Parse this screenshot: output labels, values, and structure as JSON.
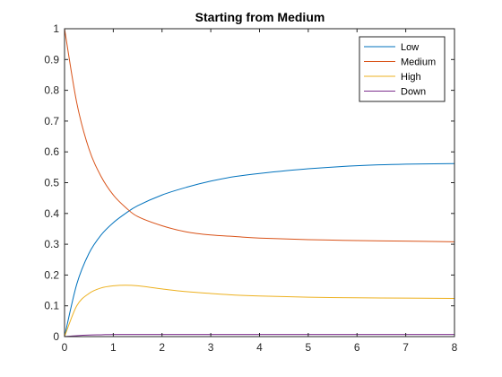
{
  "chart_data": {
    "type": "line",
    "title": "Starting from Medium",
    "xlabel": "",
    "ylabel": "",
    "xlim": [
      0,
      8
    ],
    "ylim": [
      0,
      1
    ],
    "xticks": [
      0,
      1,
      2,
      3,
      4,
      5,
      6,
      7,
      8
    ],
    "yticks": [
      0,
      0.1,
      0.2,
      0.3,
      0.4,
      0.5,
      0.6,
      0.7,
      0.8,
      0.9,
      1
    ],
    "ytick_labels": [
      "0",
      "0.1",
      "0.2",
      "0.3",
      "0.4",
      "0.5",
      "0.6",
      "0.7",
      "0.8",
      "0.9",
      "1"
    ],
    "grid": false,
    "legend_position": "top-right",
    "x": [
      0,
      0.25,
      0.5,
      0.75,
      1,
      1.25,
      1.5,
      2,
      2.5,
      3,
      3.5,
      4,
      5,
      6,
      7,
      8
    ],
    "series": [
      {
        "name": "Low",
        "color": "#0072BD",
        "values": [
          0,
          0.17,
          0.27,
          0.33,
          0.37,
          0.4,
          0.425,
          0.46,
          0.485,
          0.505,
          0.52,
          0.53,
          0.545,
          0.555,
          0.56,
          0.562
        ]
      },
      {
        "name": "Medium",
        "color": "#D95319",
        "values": [
          1,
          0.76,
          0.61,
          0.52,
          0.46,
          0.42,
          0.39,
          0.36,
          0.34,
          0.33,
          0.325,
          0.32,
          0.315,
          0.312,
          0.31,
          0.308
        ]
      },
      {
        "name": "High",
        "color": "#EDB120",
        "values": [
          0,
          0.1,
          0.14,
          0.158,
          0.165,
          0.167,
          0.165,
          0.155,
          0.146,
          0.14,
          0.135,
          0.132,
          0.128,
          0.126,
          0.125,
          0.124
        ]
      },
      {
        "name": "Down",
        "color": "#7E2F8E",
        "values": [
          0,
          0.003,
          0.005,
          0.006,
          0.007,
          0.007,
          0.007,
          0.007,
          0.007,
          0.007,
          0.007,
          0.007,
          0.007,
          0.007,
          0.007,
          0.007
        ]
      }
    ]
  }
}
